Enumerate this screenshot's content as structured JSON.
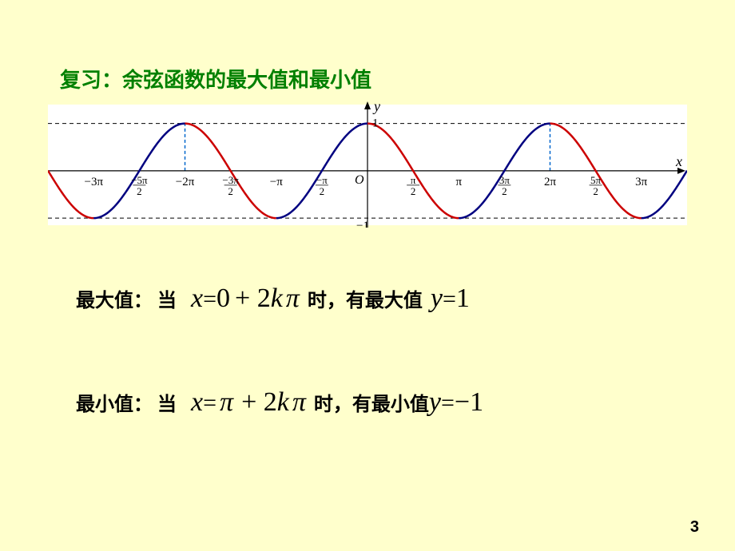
{
  "title": "复习：余弦函数的最大值和最小值",
  "page_number": "3",
  "chart": {
    "type": "line",
    "background_color": "#ffffff",
    "grid_color": "#000000",
    "xlim": [
      -11,
      11
    ],
    "ylim": [
      -1.2,
      1.5
    ],
    "amplitude": 1,
    "segments": [
      {
        "from": -11,
        "to": -9.4248,
        "color": "#cc0000"
      },
      {
        "from": -9.4248,
        "to": -6.2832,
        "color": "#000080"
      },
      {
        "from": -6.2832,
        "to": -3.1416,
        "color": "#cc0000"
      },
      {
        "from": -3.1416,
        "to": 0,
        "color": "#000080"
      },
      {
        "from": 0,
        "to": 3.1416,
        "color": "#cc0000"
      },
      {
        "from": 3.1416,
        "to": 6.2832,
        "color": "#000080"
      },
      {
        "from": 6.2832,
        "to": 9.4248,
        "color": "#cc0000"
      },
      {
        "from": 9.4248,
        "to": 11,
        "color": "#000080"
      }
    ],
    "line_width": 2.5,
    "dash_color_h": "#000000",
    "dash_color_v": "#0066cc",
    "y_axis_label": "y",
    "x_axis_label": "x",
    "y_ticks": [
      {
        "v": 1,
        "label": "1"
      },
      {
        "v": -1,
        "label": "−1"
      }
    ],
    "x_ticks_pi": [
      -3,
      -2.5,
      -2,
      -1.5,
      -1,
      -0.5,
      0.5,
      1,
      1.5,
      2,
      2.5,
      3
    ],
    "extrema_verticals": [
      -7.854,
      -6.2832,
      -4.7124,
      -1.5708,
      1.5708,
      4.7124,
      6.2832,
      7.854
    ]
  },
  "max_line": {
    "label": "最大值：",
    "prefix": "当",
    "eq1_var": "x",
    "eq1_eq": " = ",
    "eq1_val": "0",
    "eq1_plus": " + 2",
    "eq1_k": "k",
    "eq1_pi": "π",
    "mid": " 时，有最大值 ",
    "eq2_var": "y",
    "eq2_eq": " = ",
    "eq2_val": "1"
  },
  "min_line": {
    "label": "最小值：",
    "prefix": "当",
    "eq1_var": "x",
    "eq1_eq": " = ",
    "eq1_val": "π",
    "eq1_plus": " + 2",
    "eq1_k": "k",
    "eq1_pi": "π",
    "mid": " 时，有最小值 ",
    "eq2_var": "y",
    "eq2_eq": " = ",
    "eq2_val": "−1"
  }
}
